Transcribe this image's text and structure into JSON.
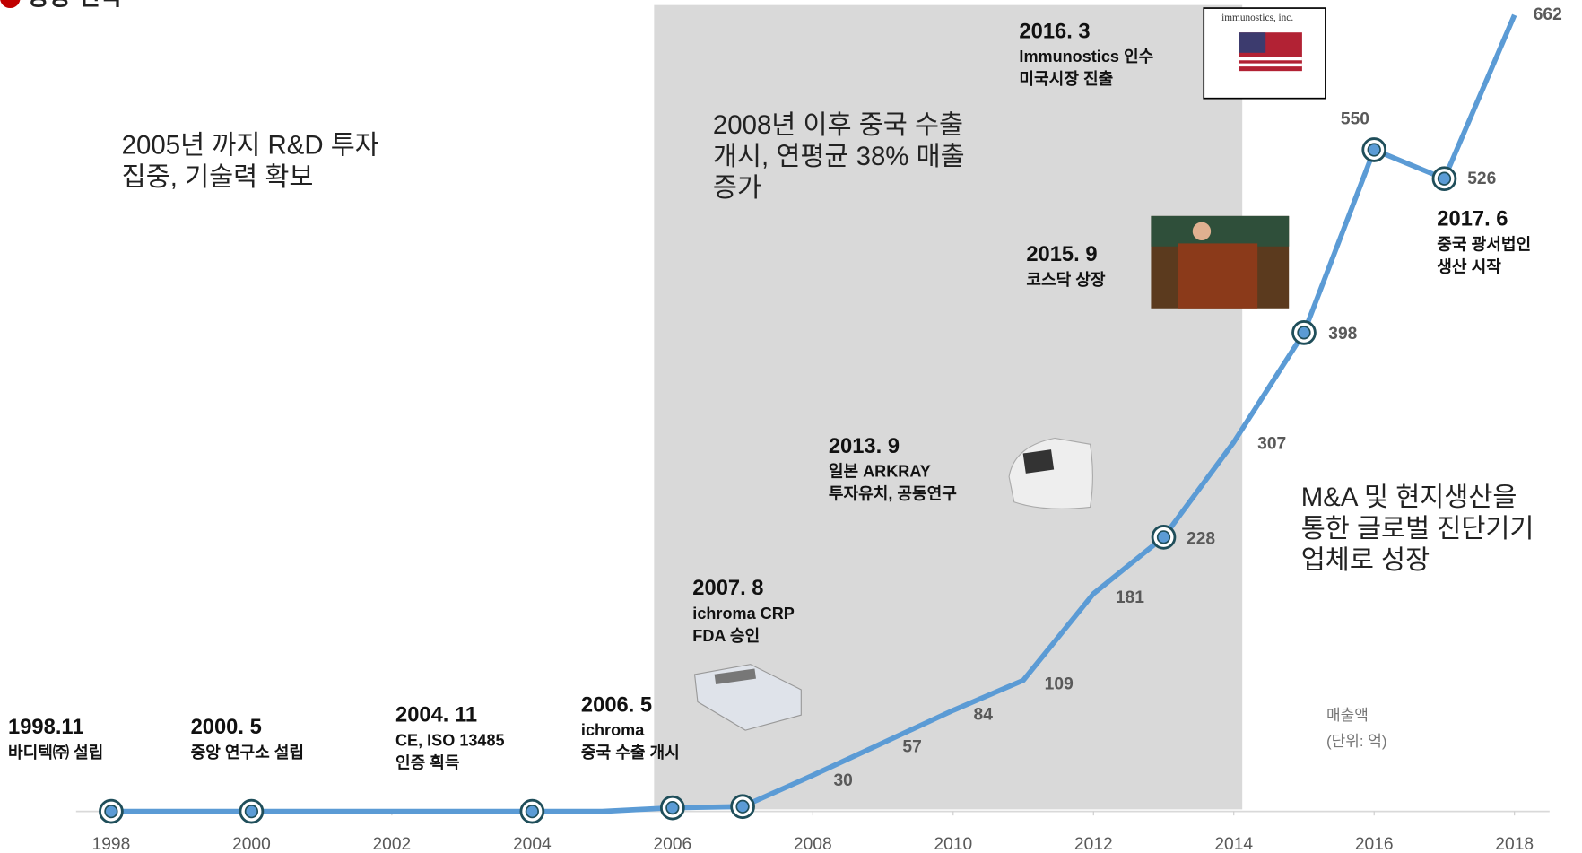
{
  "chart_data": {
    "type": "line",
    "title": "성장 전략",
    "x": [
      1998,
      1999,
      2000,
      2001,
      2002,
      2003,
      2004,
      2005,
      2006,
      2007,
      2008,
      2009,
      2010,
      2011,
      2012,
      2013,
      2014,
      2015,
      2016,
      2017,
      2018
    ],
    "series": [
      {
        "name": "매출액",
        "color": "#5b9bd5",
        "values": [
          0,
          0,
          0,
          0,
          0,
          0,
          0,
          0,
          3,
          4,
          30,
          57,
          84,
          109,
          181,
          228,
          307,
          398,
          550,
          526,
          662
        ]
      }
    ],
    "xlim": [
      1997.5,
      2018.5
    ],
    "xticks": [
      1998,
      2000,
      2002,
      2004,
      2006,
      2008,
      2010,
      2012,
      2014,
      2016,
      2018
    ],
    "ylim": [
      0,
      680
    ],
    "unit_note": [
      "매출액",
      "(단위: 억)"
    ],
    "notes": [
      {
        "lines": [
          "2005년 까지 R&D 투자",
          "집중, 기술력 확보"
        ]
      },
      {
        "lines": [
          "2008년 이후 중국 수출",
          "개시, 연평균 38% 매출",
          "증가"
        ]
      },
      {
        "lines": [
          "M&A 및 현지생산을",
          "통한 글로벌 진단기기",
          "업체로 성장"
        ]
      }
    ],
    "events": [
      {
        "date": "1998.11",
        "lines": [
          "바디텍㈜ 설립"
        ]
      },
      {
        "date": "2000. 5",
        "lines": [
          "중앙 연구소 설립"
        ]
      },
      {
        "date": "2004. 11",
        "lines": [
          "CE, ISO 13485",
          "인증 획득"
        ]
      },
      {
        "date": "2006. 5",
        "lines": [
          "ichroma",
          "중국 수출 개시"
        ]
      },
      {
        "date": "2007. 8",
        "lines": [
          "ichroma CRP",
          "FDA  승인"
        ]
      },
      {
        "date": "2013. 9",
        "lines": [
          "일본 ARKRAY",
          "투자유치, 공동연구"
        ]
      },
      {
        "date": "2015. 9",
        "lines": [
          "코스닥 상장"
        ]
      },
      {
        "date": "2016. 3",
        "lines": [
          "Immunostics 인수",
          "미국시장 진출"
        ]
      },
      {
        "date": "2017. 6",
        "lines": [
          "중국 광서법인",
          "생산 시작"
        ]
      }
    ],
    "logo_text": "immunostics, inc."
  }
}
